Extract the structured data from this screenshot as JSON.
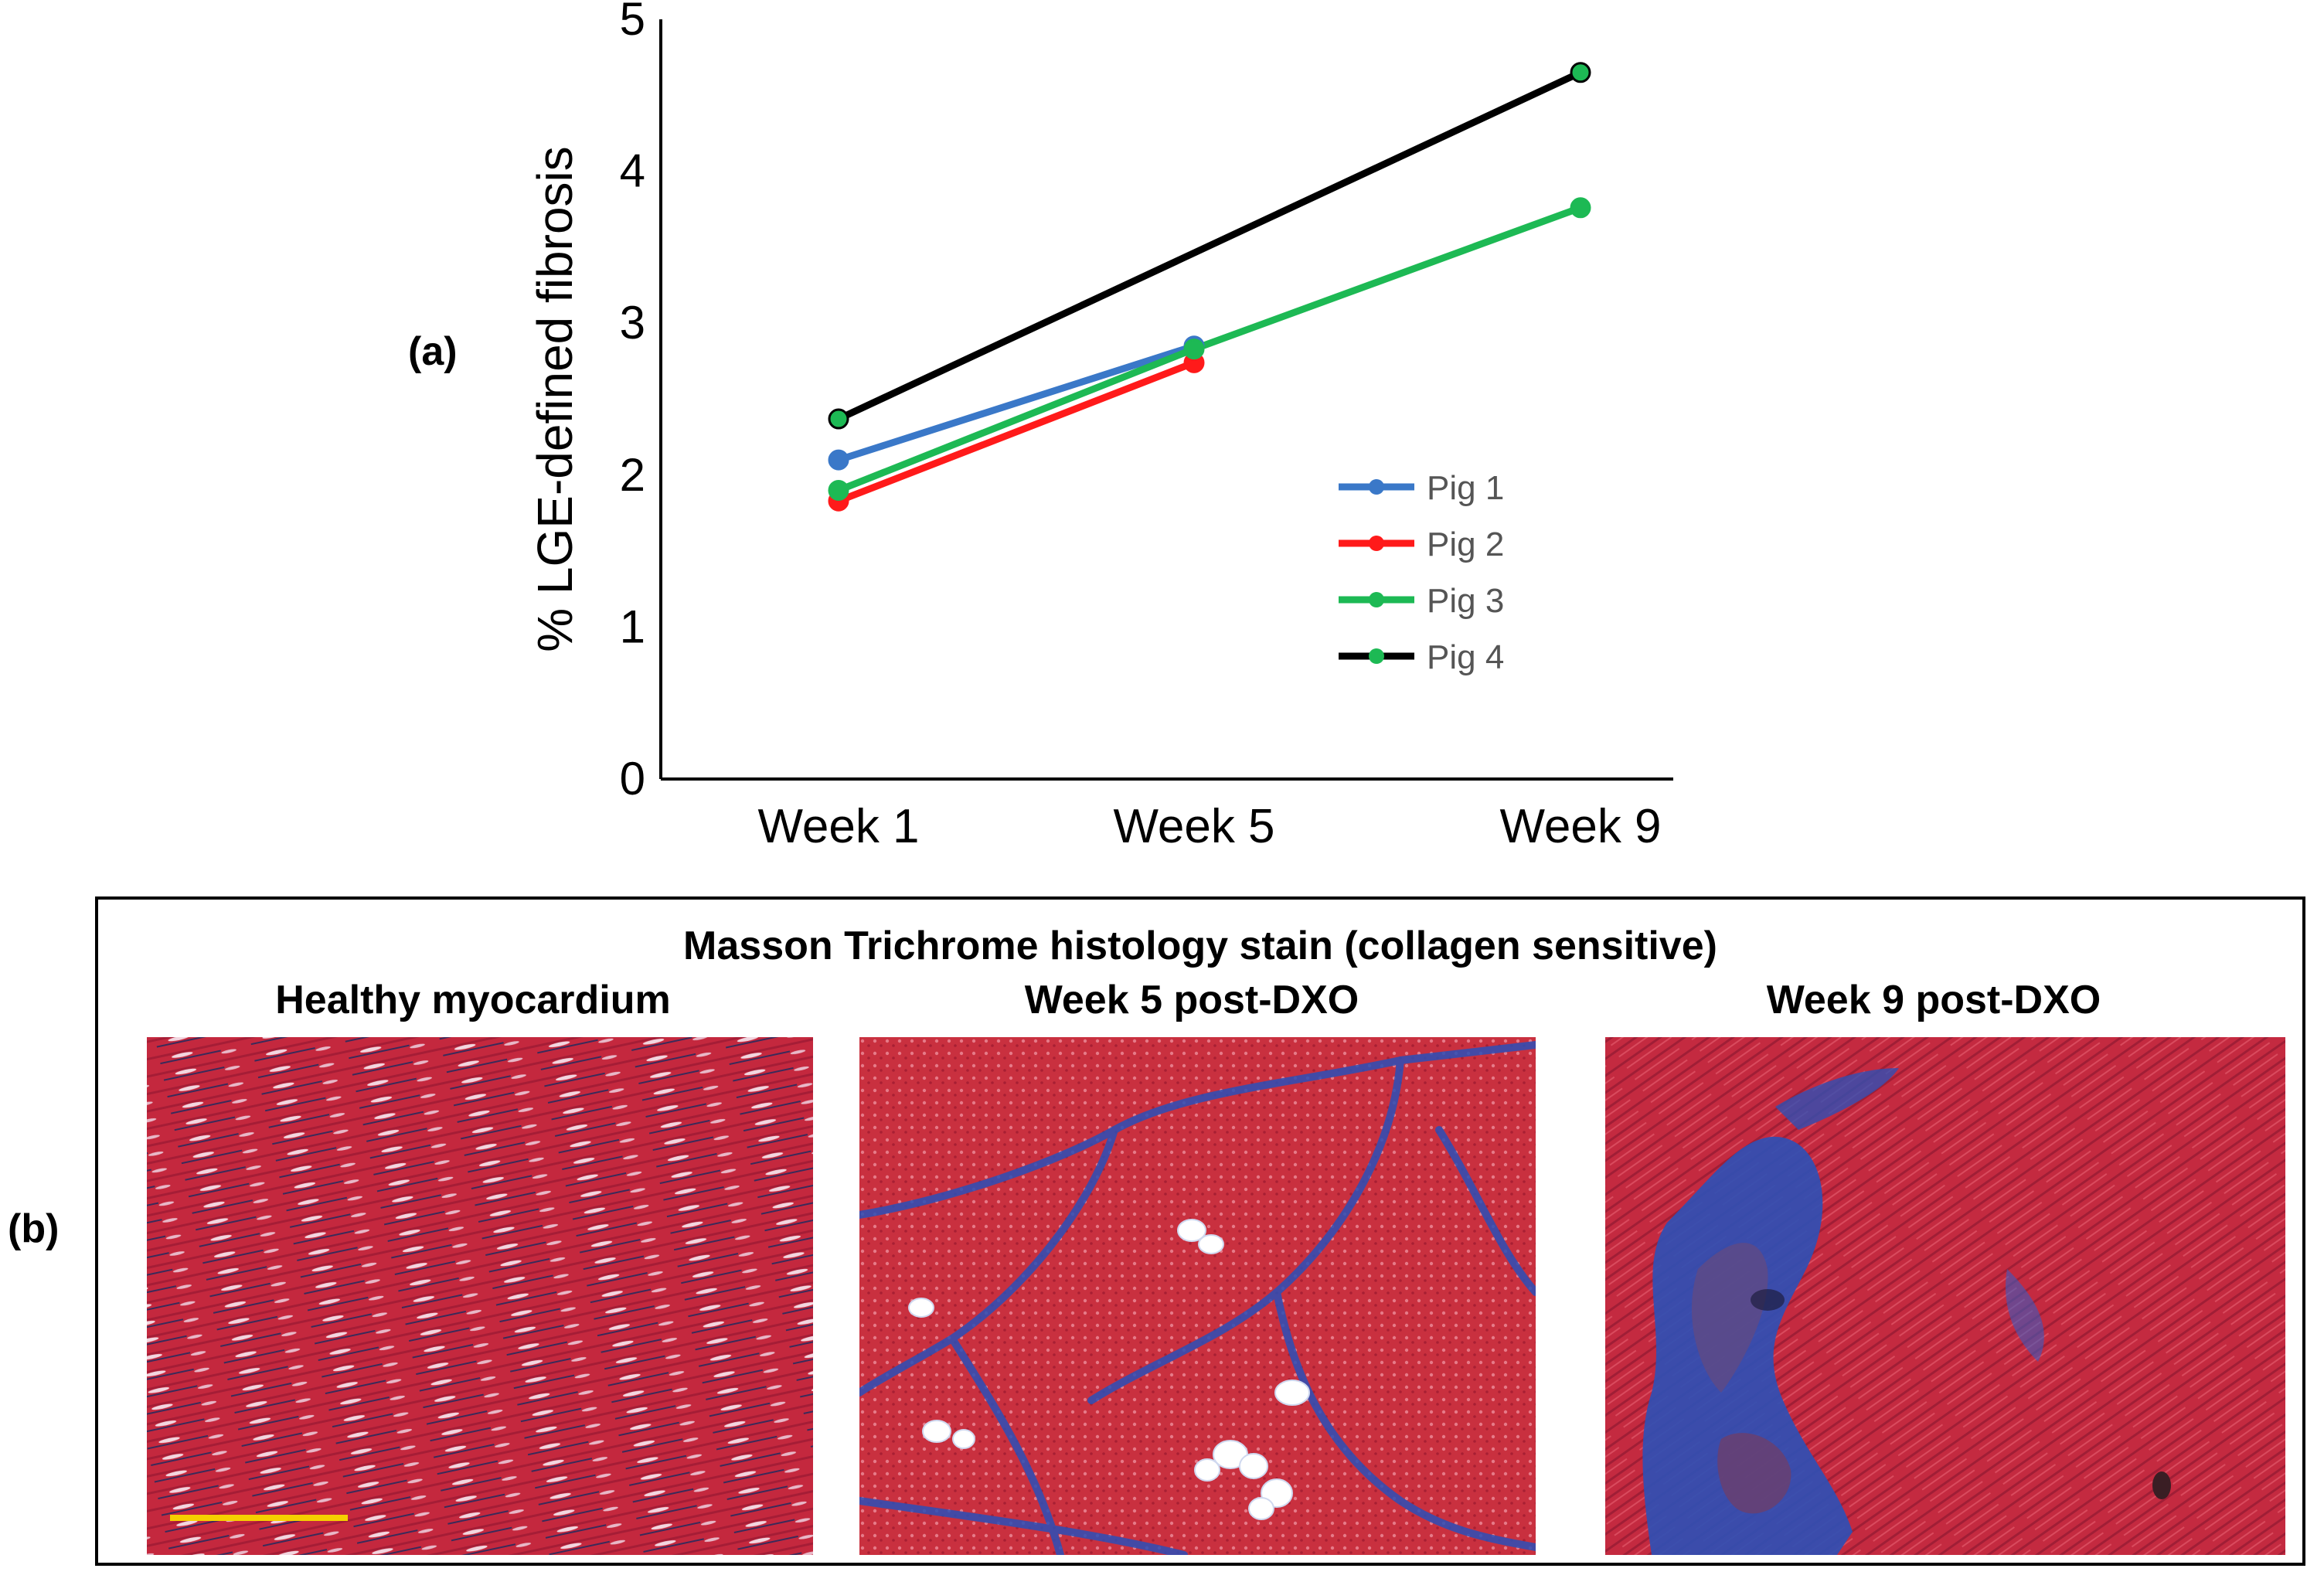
{
  "panel_labels": {
    "a": "(a)",
    "b": "(b)"
  },
  "chart_data": {
    "type": "line",
    "title": "",
    "xlabel": "",
    "ylabel": "% LGE-defined fibrosis",
    "categories": [
      "Week 1",
      "Week 5",
      "Week 9"
    ],
    "ylim": [
      0,
      5
    ],
    "yticks": [
      0,
      1,
      2,
      3,
      4,
      5
    ],
    "grid": false,
    "legend_position": "lower-right",
    "series": [
      {
        "name": "Pig 1",
        "color": "#3a78c8",
        "values": [
          2.1,
          2.85,
          null
        ]
      },
      {
        "name": "Pig 2",
        "color": "#ff1a1a",
        "values": [
          1.83,
          2.74,
          null
        ]
      },
      {
        "name": "Pig 3",
        "color": "#1db954",
        "values": [
          1.9,
          2.83,
          3.76
        ]
      },
      {
        "name": "Pig 4",
        "color": "#000000",
        "values": [
          2.37,
          null,
          4.65
        ],
        "marker_color": "#1db954"
      }
    ]
  },
  "histology": {
    "title": "Masson Trichrome histology stain (collagen sensitive)",
    "panels": [
      {
        "title": "Healthy myocardium",
        "image": "healthy-myocardium-micrograph"
      },
      {
        "title": "Week 5 post-DXO",
        "image": "week5-fibrosis-micrograph"
      },
      {
        "title": "Week 9 post-DXO",
        "image": "week9-fibrosis-micrograph"
      }
    ],
    "scale_bar_color": "#f5d000",
    "tissue_color": "#c8283c",
    "collagen_color": "#2b4fb8"
  }
}
